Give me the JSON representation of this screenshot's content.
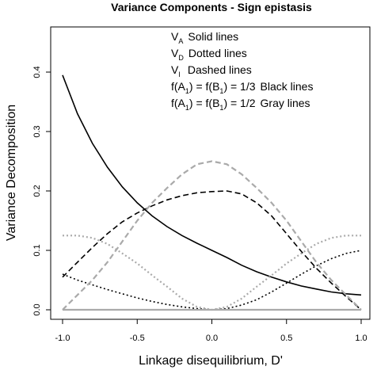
{
  "chart_data": {
    "type": "line",
    "title": "Variance Components - Sign epistasis",
    "xlabel": "Linkage disequilibrium, D'",
    "ylabel": "Variance Decomposition",
    "xlim": [
      -1.0,
      1.0
    ],
    "ylim": [
      0.0,
      0.4
    ],
    "xticks": [
      "-1.0",
      "-0.5",
      "0.0",
      "0.5",
      "1.0"
    ],
    "yticks": [
      "0.0",
      "0.1",
      "0.2",
      "0.3",
      "0.4"
    ],
    "legend": [
      {
        "symbol": "V",
        "sub": "A",
        "text": "Solid lines"
      },
      {
        "symbol": "V",
        "sub": "D",
        "text": "Dotted lines"
      },
      {
        "symbol": "V",
        "sub": "I",
        "text": "Dashed lines"
      },
      {
        "f_text": "f(A",
        "sub1": "1",
        "mid": ") = f(B",
        "sub2": "1",
        "tail": ") = 1/3",
        "text": "Black lines"
      },
      {
        "f_text": "f(A",
        "sub1": "1",
        "mid": ") = f(B",
        "sub2": "1",
        "tail": ") = 1/2",
        "text": "Gray lines"
      }
    ],
    "series": [
      {
        "component": "V_A",
        "freq": "1/3",
        "color": "#000000",
        "style": "solid",
        "x": [
          -1.0,
          -0.9,
          -0.8,
          -0.7,
          -0.6,
          -0.5,
          -0.4,
          -0.3,
          -0.2,
          -0.1,
          0.0,
          0.1,
          0.2,
          0.3,
          0.4,
          0.5,
          0.6,
          0.7,
          0.8,
          0.9,
          1.0
        ],
        "y": [
          0.395,
          0.33,
          0.28,
          0.24,
          0.207,
          0.18,
          0.158,
          0.14,
          0.125,
          0.112,
          0.1,
          0.088,
          0.075,
          0.064,
          0.055,
          0.047,
          0.04,
          0.035,
          0.03,
          0.027,
          0.025
        ]
      },
      {
        "component": "V_D",
        "freq": "1/3",
        "color": "#000000",
        "style": "dotted",
        "x": [
          -1.0,
          -0.9,
          -0.8,
          -0.7,
          -0.6,
          -0.5,
          -0.4,
          -0.3,
          -0.2,
          -0.1,
          0.0,
          0.1,
          0.2,
          0.3,
          0.4,
          0.5,
          0.6,
          0.7,
          0.8,
          0.9,
          1.0
        ],
        "y": [
          0.06,
          0.05,
          0.042,
          0.034,
          0.027,
          0.02,
          0.014,
          0.009,
          0.005,
          0.002,
          0.0,
          0.002,
          0.008,
          0.017,
          0.03,
          0.045,
          0.06,
          0.074,
          0.086,
          0.095,
          0.1
        ]
      },
      {
        "component": "V_I",
        "freq": "1/3",
        "color": "#000000",
        "style": "dashed",
        "x": [
          -1.0,
          -0.9,
          -0.8,
          -0.7,
          -0.6,
          -0.5,
          -0.4,
          -0.3,
          -0.2,
          -0.1,
          0.0,
          0.1,
          0.2,
          0.3,
          0.4,
          0.5,
          0.6,
          0.7,
          0.8,
          0.9,
          1.0
        ],
        "y": [
          0.055,
          0.08,
          0.105,
          0.128,
          0.148,
          0.163,
          0.175,
          0.185,
          0.192,
          0.197,
          0.199,
          0.2,
          0.195,
          0.18,
          0.158,
          0.128,
          0.098,
          0.07,
          0.045,
          0.022,
          0.0
        ]
      },
      {
        "component": "V_A",
        "freq": "1/2",
        "color": "#aaaaaa",
        "style": "solid",
        "x": [
          -1.0,
          1.0
        ],
        "y": [
          0.0,
          0.0
        ]
      },
      {
        "component": "V_D",
        "freq": "1/2",
        "color": "#aaaaaa",
        "style": "dotted",
        "x": [
          -1.0,
          -0.9,
          -0.8,
          -0.7,
          -0.6,
          -0.5,
          -0.4,
          -0.3,
          -0.2,
          -0.1,
          0.0,
          0.1,
          0.2,
          0.3,
          0.4,
          0.5,
          0.6,
          0.7,
          0.8,
          0.9,
          1.0
        ],
        "y": [
          0.125,
          0.125,
          0.121,
          0.111,
          0.095,
          0.078,
          0.058,
          0.039,
          0.019,
          0.005,
          0.0,
          0.005,
          0.019,
          0.039,
          0.058,
          0.078,
          0.095,
          0.111,
          0.121,
          0.125,
          0.125
        ]
      },
      {
        "component": "V_I",
        "freq": "1/2",
        "color": "#aaaaaa",
        "style": "dashed",
        "x": [
          -1.0,
          -0.9,
          -0.8,
          -0.7,
          -0.6,
          -0.5,
          -0.4,
          -0.3,
          -0.2,
          -0.1,
          0.0,
          0.1,
          0.2,
          0.3,
          0.4,
          0.5,
          0.6,
          0.7,
          0.8,
          0.9,
          1.0
        ],
        "y": [
          0.0,
          0.025,
          0.05,
          0.08,
          0.115,
          0.15,
          0.18,
          0.205,
          0.228,
          0.245,
          0.25,
          0.245,
          0.228,
          0.205,
          0.18,
          0.15,
          0.115,
          0.08,
          0.05,
          0.025,
          0.0
        ]
      }
    ]
  }
}
